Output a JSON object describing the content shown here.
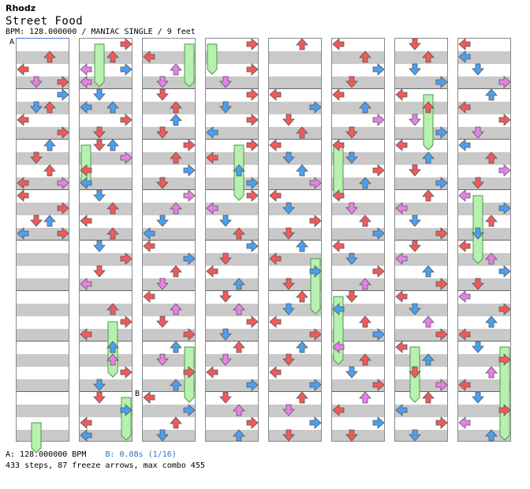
{
  "header": {
    "artist": "Rhodz",
    "title": "Street Food",
    "info": "BPM: 128.000000 / MANIAC SINGLE / 9 feet"
  },
  "markers": {
    "a": "A",
    "b": "B"
  },
  "footer": {
    "a_label": "A: 128.000000 BPM",
    "b_label": "B: 0.08s (1/16)",
    "stats": "433 steps, 87 freeze arrows, max combo 455"
  },
  "colors": {
    "quarter": "#f05a5a",
    "eighth": "#4aa0f0",
    "sixteenth": "#e880e8",
    "freeze": "#b8f0b0",
    "freeze_border": "#4a9a4a",
    "stripe": "#c9c9c9"
  },
  "icons": [
    "left-arrow-icon",
    "down-arrow-icon",
    "up-arrow-icon",
    "right-arrow-icon"
  ],
  "chart_data": {
    "type": "table",
    "lanes": [
      "left",
      "down",
      "up",
      "right"
    ],
    "columns": 8,
    "measures_per_column": 4,
    "notes": [
      [
        0,
        1,
        "R",
        2
      ],
      [
        0,
        2,
        "R",
        0
      ],
      [
        0,
        3,
        "R",
        3
      ],
      [
        0,
        3,
        "P",
        1
      ],
      [
        0,
        4,
        "B",
        3
      ],
      [
        0,
        5,
        "B",
        1
      ],
      [
        0,
        5,
        "R",
        2
      ],
      [
        0,
        6,
        "R",
        0
      ],
      [
        0,
        7,
        "R",
        3
      ],
      [
        0,
        8,
        "B",
        2
      ],
      [
        0,
        9,
        "R",
        1
      ],
      [
        0,
        10,
        "R",
        2
      ],
      [
        0,
        11,
        "R",
        0
      ],
      [
        0,
        11,
        "P",
        3
      ],
      [
        0,
        12,
        "R",
        0
      ],
      [
        0,
        13,
        "R",
        3
      ],
      [
        0,
        14,
        "R",
        1
      ],
      [
        0,
        14,
        "B",
        2
      ],
      [
        0,
        15,
        "B",
        0
      ],
      [
        0,
        15,
        "R",
        3
      ],
      [
        1,
        0,
        "R",
        3
      ],
      [
        1,
        1,
        "R",
        2
      ],
      [
        1,
        2,
        "B",
        3
      ],
      [
        1,
        2,
        "P",
        0
      ],
      [
        1,
        3,
        "P",
        0
      ],
      [
        1,
        4,
        "B",
        1
      ],
      [
        1,
        5,
        "B",
        0
      ],
      [
        1,
        5,
        "B",
        2
      ],
      [
        1,
        6,
        "R",
        3
      ],
      [
        1,
        7,
        "R",
        1
      ],
      [
        1,
        8,
        "R",
        1
      ],
      [
        1,
        8,
        "B",
        2
      ],
      [
        1,
        9,
        "P",
        3
      ],
      [
        1,
        10,
        "R",
        0
      ],
      [
        1,
        11,
        "B",
        0
      ],
      [
        1,
        12,
        "B",
        1
      ],
      [
        1,
        13,
        "R",
        2
      ],
      [
        1,
        14,
        "R",
        0
      ],
      [
        1,
        15,
        "R",
        2
      ],
      [
        1,
        16,
        "B",
        1
      ],
      [
        1,
        17,
        "R",
        3
      ],
      [
        1,
        18,
        "R",
        1
      ],
      [
        1,
        19,
        "P",
        0
      ],
      [
        1,
        21,
        "R",
        2
      ],
      [
        1,
        22,
        "R",
        3
      ],
      [
        1,
        23,
        "R",
        0
      ],
      [
        1,
        24,
        "B",
        2
      ],
      [
        1,
        25,
        "P",
        2
      ],
      [
        1,
        26,
        "R",
        3
      ],
      [
        1,
        27,
        "B",
        1
      ],
      [
        1,
        28,
        "R",
        1
      ],
      [
        1,
        29,
        "B",
        3
      ],
      [
        1,
        30,
        "R",
        0
      ],
      [
        1,
        31,
        "B",
        0
      ],
      [
        2,
        1,
        "R",
        0
      ],
      [
        2,
        2,
        "P",
        2
      ],
      [
        2,
        3,
        "P",
        1
      ],
      [
        2,
        4,
        "R",
        1
      ],
      [
        2,
        5,
        "R",
        2
      ],
      [
        2,
        6,
        "B",
        2
      ],
      [
        2,
        7,
        "R",
        1
      ],
      [
        2,
        8,
        "R",
        3
      ],
      [
        2,
        9,
        "R",
        2
      ],
      [
        2,
        10,
        "B",
        3
      ],
      [
        2,
        11,
        "R",
        1
      ],
      [
        2,
        12,
        "P",
        3
      ],
      [
        2,
        13,
        "P",
        2
      ],
      [
        2,
        14,
        "B",
        1
      ],
      [
        2,
        15,
        "B",
        0
      ],
      [
        2,
        16,
        "R",
        0
      ],
      [
        2,
        17,
        "B",
        3
      ],
      [
        2,
        18,
        "R",
        2
      ],
      [
        2,
        19,
        "P",
        1
      ],
      [
        2,
        20,
        "R",
        0
      ],
      [
        2,
        21,
        "P",
        2
      ],
      [
        2,
        22,
        "R",
        1
      ],
      [
        2,
        23,
        "R",
        3
      ],
      [
        2,
        24,
        "B",
        2
      ],
      [
        2,
        25,
        "P",
        1
      ],
      [
        2,
        26,
        "R",
        3
      ],
      [
        2,
        27,
        "B",
        2
      ],
      [
        2,
        28,
        "R",
        0
      ],
      [
        2,
        29,
        "B",
        3
      ],
      [
        2,
        30,
        "R",
        2
      ],
      [
        2,
        31,
        "B",
        1
      ],
      [
        3,
        0,
        "R",
        3
      ],
      [
        3,
        2,
        "R",
        3
      ],
      [
        3,
        3,
        "P",
        1
      ],
      [
        3,
        4,
        "R",
        3
      ],
      [
        3,
        5,
        "B",
        1
      ],
      [
        3,
        6,
        "R",
        3
      ],
      [
        3,
        7,
        "B",
        0
      ],
      [
        3,
        8,
        "R",
        3
      ],
      [
        3,
        9,
        "R",
        0
      ],
      [
        3,
        10,
        "B",
        2
      ],
      [
        3,
        11,
        "B",
        3
      ],
      [
        3,
        12,
        "R",
        3
      ],
      [
        3,
        13,
        "P",
        0
      ],
      [
        3,
        14,
        "B",
        1
      ],
      [
        3,
        15,
        "R",
        2
      ],
      [
        3,
        16,
        "B",
        3
      ],
      [
        3,
        17,
        "R",
        1
      ],
      [
        3,
        18,
        "R",
        0
      ],
      [
        3,
        19,
        "B",
        2
      ],
      [
        3,
        20,
        "R",
        1
      ],
      [
        3,
        21,
        "P",
        2
      ],
      [
        3,
        22,
        "R",
        3
      ],
      [
        3,
        23,
        "B",
        1
      ],
      [
        3,
        24,
        "R",
        2
      ],
      [
        3,
        25,
        "P",
        1
      ],
      [
        3,
        26,
        "R",
        0
      ],
      [
        3,
        27,
        "B",
        3
      ],
      [
        3,
        28,
        "R",
        1
      ],
      [
        3,
        29,
        "P",
        2
      ],
      [
        3,
        30,
        "R",
        3
      ],
      [
        3,
        31,
        "B",
        2
      ],
      [
        4,
        0,
        "R",
        2
      ],
      [
        4,
        4,
        "R",
        0
      ],
      [
        4,
        5,
        "B",
        3
      ],
      [
        4,
        6,
        "R",
        1
      ],
      [
        4,
        7,
        "R",
        2
      ],
      [
        4,
        8,
        "R",
        0
      ],
      [
        4,
        9,
        "B",
        1
      ],
      [
        4,
        10,
        "B",
        2
      ],
      [
        4,
        11,
        "P",
        3
      ],
      [
        4,
        12,
        "R",
        0
      ],
      [
        4,
        13,
        "B",
        1
      ],
      [
        4,
        14,
        "R",
        3
      ],
      [
        4,
        15,
        "R",
        1
      ],
      [
        4,
        16,
        "B",
        2
      ],
      [
        4,
        17,
        "R",
        0
      ],
      [
        4,
        18,
        "B",
        3
      ],
      [
        4,
        19,
        "R",
        1
      ],
      [
        4,
        20,
        "R",
        2
      ],
      [
        4,
        21,
        "B",
        1
      ],
      [
        4,
        22,
        "R",
        0
      ],
      [
        4,
        23,
        "R",
        3
      ],
      [
        4,
        24,
        "B",
        2
      ],
      [
        4,
        25,
        "R",
        1
      ],
      [
        4,
        26,
        "R",
        0
      ],
      [
        4,
        27,
        "B",
        3
      ],
      [
        4,
        28,
        "R",
        2
      ],
      [
        4,
        29,
        "P",
        1
      ],
      [
        4,
        30,
        "B",
        3
      ],
      [
        4,
        31,
        "R",
        1
      ],
      [
        5,
        0,
        "R",
        0
      ],
      [
        5,
        1,
        "R",
        2
      ],
      [
        5,
        2,
        "B",
        3
      ],
      [
        5,
        3,
        "R",
        1
      ],
      [
        5,
        4,
        "R",
        0
      ],
      [
        5,
        5,
        "B",
        2
      ],
      [
        5,
        6,
        "P",
        3
      ],
      [
        5,
        7,
        "R",
        1
      ],
      [
        5,
        8,
        "R",
        0
      ],
      [
        5,
        9,
        "B",
        1
      ],
      [
        5,
        10,
        "R",
        3
      ],
      [
        5,
        11,
        "B",
        2
      ],
      [
        5,
        12,
        "R",
        0
      ],
      [
        5,
        13,
        "P",
        1
      ],
      [
        5,
        14,
        "R",
        2
      ],
      [
        5,
        15,
        "B",
        3
      ],
      [
        5,
        16,
        "R",
        0
      ],
      [
        5,
        17,
        "B",
        1
      ],
      [
        5,
        18,
        "R",
        3
      ],
      [
        5,
        19,
        "P",
        2
      ],
      [
        5,
        20,
        "R",
        1
      ],
      [
        5,
        21,
        "B",
        0
      ],
      [
        5,
        22,
        "R",
        2
      ],
      [
        5,
        23,
        "B",
        3
      ],
      [
        5,
        24,
        "P",
        0
      ],
      [
        5,
        25,
        "R",
        2
      ],
      [
        5,
        26,
        "B",
        1
      ],
      [
        5,
        27,
        "R",
        3
      ],
      [
        5,
        28,
        "P",
        2
      ],
      [
        5,
        29,
        "R",
        0
      ],
      [
        5,
        30,
        "B",
        3
      ],
      [
        5,
        31,
        "R",
        1
      ],
      [
        6,
        0,
        "R",
        1
      ],
      [
        6,
        1,
        "R",
        2
      ],
      [
        6,
        2,
        "B",
        1
      ],
      [
        6,
        3,
        "B",
        3
      ],
      [
        6,
        4,
        "R",
        0
      ],
      [
        6,
        5,
        "R",
        2
      ],
      [
        6,
        6,
        "P",
        1
      ],
      [
        6,
        7,
        "B",
        3
      ],
      [
        6,
        8,
        "R",
        0
      ],
      [
        6,
        9,
        "B",
        2
      ],
      [
        6,
        10,
        "R",
        1
      ],
      [
        6,
        11,
        "B",
        3
      ],
      [
        6,
        12,
        "R",
        2
      ],
      [
        6,
        13,
        "P",
        0
      ],
      [
        6,
        14,
        "B",
        1
      ],
      [
        6,
        15,
        "R",
        3
      ],
      [
        6,
        16,
        "R",
        1
      ],
      [
        6,
        17,
        "P",
        0
      ],
      [
        6,
        18,
        "B",
        2
      ],
      [
        6,
        19,
        "R",
        3
      ],
      [
        6,
        20,
        "R",
        0
      ],
      [
        6,
        21,
        "B",
        1
      ],
      [
        6,
        22,
        "P",
        2
      ],
      [
        6,
        23,
        "R",
        3
      ],
      [
        6,
        24,
        "R",
        0
      ],
      [
        6,
        25,
        "B",
        2
      ],
      [
        6,
        26,
        "R",
        1
      ],
      [
        6,
        27,
        "P",
        3
      ],
      [
        6,
        28,
        "R",
        2
      ],
      [
        6,
        29,
        "B",
        0
      ],
      [
        6,
        30,
        "R",
        3
      ],
      [
        6,
        31,
        "B",
        1
      ],
      [
        7,
        0,
        "R",
        0
      ],
      [
        7,
        1,
        "B",
        0
      ],
      [
        7,
        2,
        "B",
        1
      ],
      [
        7,
        3,
        "P",
        3
      ],
      [
        7,
        4,
        "B",
        2
      ],
      [
        7,
        5,
        "R",
        0
      ],
      [
        7,
        6,
        "R",
        3
      ],
      [
        7,
        7,
        "P",
        1
      ],
      [
        7,
        8,
        "B",
        0
      ],
      [
        7,
        9,
        "R",
        2
      ],
      [
        7,
        10,
        "P",
        3
      ],
      [
        7,
        11,
        "R",
        1
      ],
      [
        7,
        12,
        "P",
        0
      ],
      [
        7,
        13,
        "B",
        3
      ],
      [
        7,
        14,
        "R",
        2
      ],
      [
        7,
        15,
        "B",
        1
      ],
      [
        7,
        16,
        "R",
        0
      ],
      [
        7,
        17,
        "P",
        2
      ],
      [
        7,
        18,
        "B",
        3
      ],
      [
        7,
        19,
        "R",
        1
      ],
      [
        7,
        20,
        "P",
        0
      ],
      [
        7,
        21,
        "R",
        3
      ],
      [
        7,
        22,
        "B",
        2
      ],
      [
        7,
        23,
        "R",
        0
      ],
      [
        7,
        24,
        "B",
        1
      ],
      [
        7,
        25,
        "R",
        3
      ],
      [
        7,
        26,
        "P",
        2
      ],
      [
        7,
        27,
        "R",
        0
      ],
      [
        7,
        28,
        "B",
        1
      ],
      [
        7,
        29,
        "R",
        3
      ],
      [
        7,
        30,
        "P",
        0
      ],
      [
        7,
        31,
        "B",
        2
      ]
    ],
    "freezes": [
      [
        1,
        0,
        3,
        1
      ],
      [
        1,
        22,
        26,
        2
      ],
      [
        2,
        0,
        3,
        3
      ],
      [
        3,
        0,
        2,
        0
      ],
      [
        4,
        17,
        21,
        3
      ],
      [
        5,
        20,
        25,
        0
      ],
      [
        6,
        24,
        28,
        1
      ],
      [
        7,
        24,
        31,
        3
      ],
      [
        1,
        8,
        11,
        0
      ],
      [
        2,
        24,
        28,
        3
      ],
      [
        3,
        8,
        12,
        2
      ],
      [
        5,
        8,
        12,
        0
      ],
      [
        6,
        4,
        8,
        2
      ],
      [
        7,
        12,
        17,
        1
      ],
      [
        0,
        30,
        32,
        1
      ],
      [
        1,
        28,
        31,
        3
      ]
    ]
  }
}
